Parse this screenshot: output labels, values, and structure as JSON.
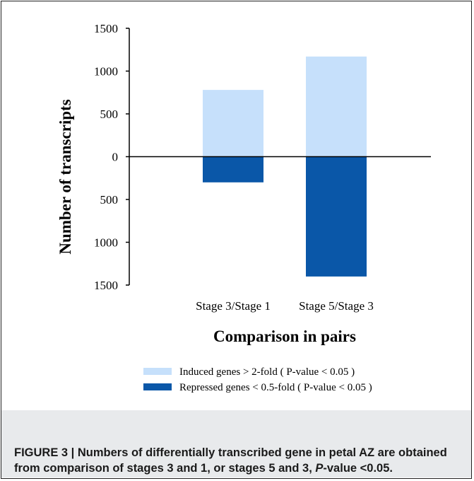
{
  "chart_data": {
    "type": "bar",
    "categories": [
      "Stage 3/Stage 1",
      "Stage 5/Stage 3"
    ],
    "series": [
      {
        "name": "Induced genes > 2-fold ( P-value < 0.05 )",
        "values": [
          780,
          1170
        ],
        "color": "#c6e0fb"
      },
      {
        "name": "Repressed genes < 0.5-fold ( P-value < 0.05 )",
        "values": [
          -300,
          -1400
        ],
        "color": "#0a57a8"
      }
    ],
    "yticks": [
      1500,
      1000,
      500,
      0,
      -500,
      -1000,
      -1500
    ],
    "ytick_labels": [
      "1500",
      "1000",
      "500",
      "0",
      "500",
      "1000",
      "1500"
    ],
    "ylim": [
      -1500,
      1500
    ],
    "xlabel": "Comparison in pairs",
    "ylabel": "Number of transcripts",
    "legend_position": "bottom",
    "grid": false
  },
  "caption": {
    "label": "FIGURE 3 | Numbers of differentially transcribed gene in petal AZ are obtained from comparison of stages 3 and 1, or stages 5 and 3, ",
    "p_symbol": "P",
    "p_rest": "-value <0.05."
  }
}
